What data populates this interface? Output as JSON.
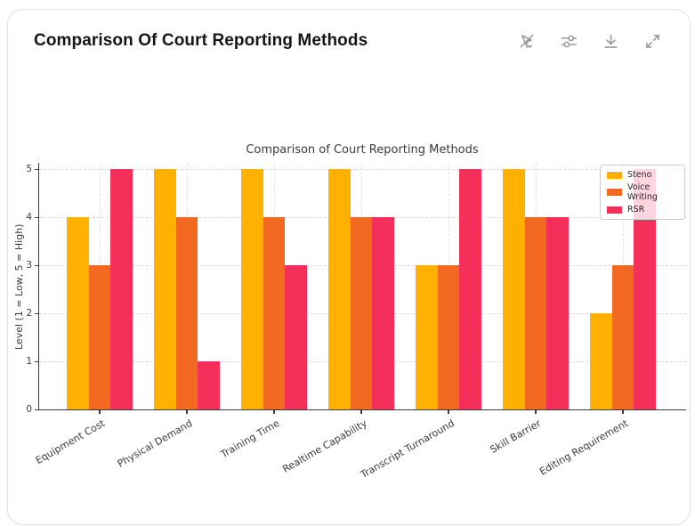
{
  "header": {
    "title": "Comparison Of Court Reporting Methods",
    "toolbar": {
      "icons": [
        "cursor-off-icon",
        "sliders-icon",
        "download-icon",
        "expand-icon"
      ]
    }
  },
  "chart_data": {
    "type": "bar",
    "title": "Comparison of Court Reporting Methods",
    "xlabel": "",
    "ylabel": "Level (1 = Low, 5 = High)",
    "ylim": [
      0,
      5
    ],
    "yticks": [
      0,
      1,
      2,
      3,
      4,
      5
    ],
    "grid": true,
    "legend_position": "upper right",
    "categories": [
      "Equipment Cost",
      "Physical Demand",
      "Training Time",
      "Realtime Capability",
      "Transcript Turnaround",
      "Skill Barrier",
      "Editing Requirement"
    ],
    "series": [
      {
        "name": "Steno",
        "color": "#FFB000",
        "values": [
          4,
          5,
          5,
          5,
          3,
          5,
          2
        ]
      },
      {
        "name": "Voice Writing",
        "color": "#F26A21",
        "values": [
          3,
          4,
          4,
          4,
          3,
          4,
          3
        ]
      },
      {
        "name": "RSR",
        "color": "#F4305A",
        "values": [
          5,
          1,
          3,
          4,
          5,
          4,
          5
        ]
      }
    ]
  }
}
